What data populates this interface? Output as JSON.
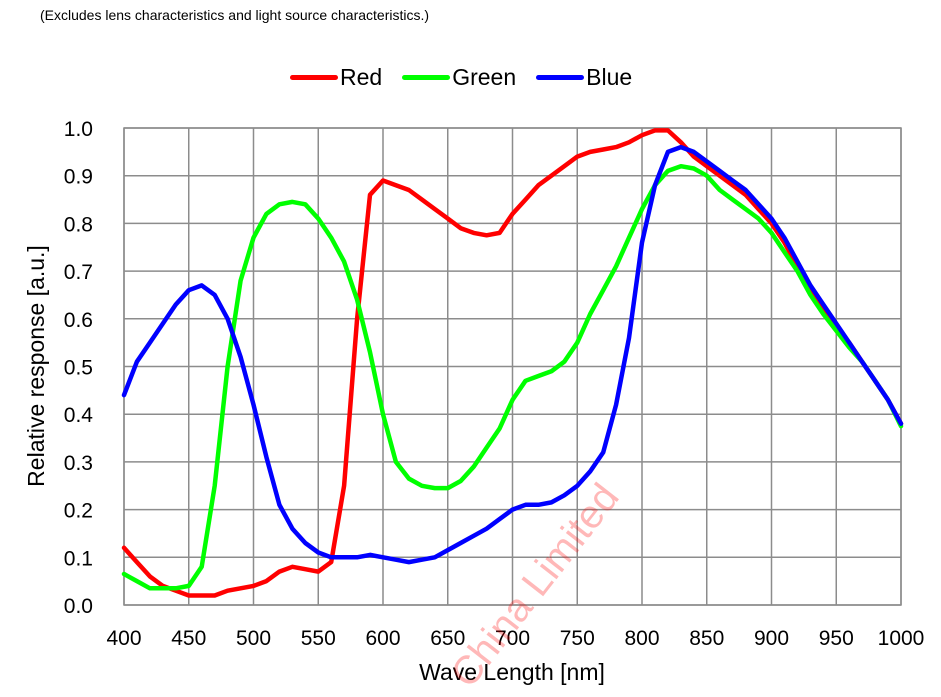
{
  "note": "(Excludes lens characteristics and light source characteristics.)",
  "watermark": "China Limited",
  "legend": [
    {
      "label": "Red",
      "color": "#ff0000"
    },
    {
      "label": "Green",
      "color": "#00ff00"
    },
    {
      "label": "Blue",
      "color": "#0000ff"
    }
  ],
  "chart_data": {
    "type": "line",
    "title": "",
    "subtitle": "(Excludes lens characteristics and light source characteristics.)",
    "xlabel": "Wave Length [nm]",
    "ylabel": "Relative response [a.u.]",
    "xlim": [
      400,
      1000
    ],
    "ylim": [
      0.0,
      1.0
    ],
    "x_ticks": [
      "400",
      "450",
      "500",
      "550",
      "600",
      "650",
      "700",
      "750",
      "800",
      "850",
      "900",
      "950",
      "1000"
    ],
    "y_ticks": [
      "0.0",
      "0.1",
      "0.2",
      "0.3",
      "0.4",
      "0.5",
      "0.6",
      "0.7",
      "0.8",
      "0.9",
      "1.0"
    ],
    "grid": true,
    "legend_position": "top",
    "x": [
      400,
      410,
      420,
      430,
      440,
      450,
      460,
      470,
      480,
      490,
      500,
      510,
      520,
      530,
      540,
      550,
      560,
      570,
      580,
      590,
      600,
      610,
      620,
      630,
      640,
      650,
      660,
      670,
      680,
      690,
      700,
      710,
      720,
      730,
      740,
      750,
      760,
      770,
      780,
      790,
      800,
      810,
      820,
      830,
      840,
      850,
      860,
      870,
      880,
      890,
      900,
      910,
      920,
      930,
      940,
      950,
      960,
      970,
      980,
      990,
      1000
    ],
    "series": [
      {
        "name": "Red",
        "color": "#ff0000",
        "values": [
          0.12,
          0.09,
          0.06,
          0.04,
          0.03,
          0.02,
          0.02,
          0.02,
          0.03,
          0.035,
          0.04,
          0.05,
          0.07,
          0.08,
          0.075,
          0.07,
          0.09,
          0.25,
          0.6,
          0.86,
          0.89,
          0.88,
          0.87,
          0.85,
          0.83,
          0.81,
          0.79,
          0.78,
          0.775,
          0.78,
          0.82,
          0.85,
          0.88,
          0.9,
          0.92,
          0.94,
          0.95,
          0.955,
          0.96,
          0.97,
          0.985,
          0.995,
          0.995,
          0.97,
          0.94,
          0.92,
          0.9,
          0.88,
          0.86,
          0.83,
          0.8,
          0.76,
          0.71,
          0.66,
          0.62,
          0.58,
          0.55,
          0.51,
          0.47,
          0.43,
          0.38
        ]
      },
      {
        "name": "Green",
        "color": "#00ff00",
        "values": [
          0.065,
          0.05,
          0.035,
          0.035,
          0.035,
          0.04,
          0.08,
          0.25,
          0.5,
          0.68,
          0.77,
          0.82,
          0.84,
          0.845,
          0.84,
          0.81,
          0.77,
          0.72,
          0.64,
          0.53,
          0.4,
          0.3,
          0.265,
          0.25,
          0.245,
          0.245,
          0.26,
          0.29,
          0.33,
          0.37,
          0.43,
          0.47,
          0.48,
          0.49,
          0.51,
          0.55,
          0.61,
          0.66,
          0.71,
          0.77,
          0.83,
          0.88,
          0.91,
          0.92,
          0.915,
          0.9,
          0.87,
          0.85,
          0.83,
          0.81,
          0.78,
          0.74,
          0.7,
          0.65,
          0.61,
          0.575,
          0.54,
          0.51,
          0.47,
          0.43,
          0.375
        ]
      },
      {
        "name": "Blue",
        "color": "#0000ff",
        "values": [
          0.44,
          0.51,
          0.55,
          0.59,
          0.63,
          0.66,
          0.67,
          0.65,
          0.6,
          0.52,
          0.42,
          0.31,
          0.21,
          0.16,
          0.13,
          0.11,
          0.1,
          0.1,
          0.1,
          0.105,
          0.1,
          0.095,
          0.09,
          0.095,
          0.1,
          0.115,
          0.13,
          0.145,
          0.16,
          0.18,
          0.2,
          0.21,
          0.21,
          0.215,
          0.23,
          0.25,
          0.28,
          0.32,
          0.42,
          0.56,
          0.76,
          0.88,
          0.95,
          0.96,
          0.95,
          0.93,
          0.91,
          0.89,
          0.87,
          0.84,
          0.81,
          0.77,
          0.72,
          0.67,
          0.63,
          0.59,
          0.55,
          0.51,
          0.47,
          0.43,
          0.38
        ]
      }
    ]
  }
}
